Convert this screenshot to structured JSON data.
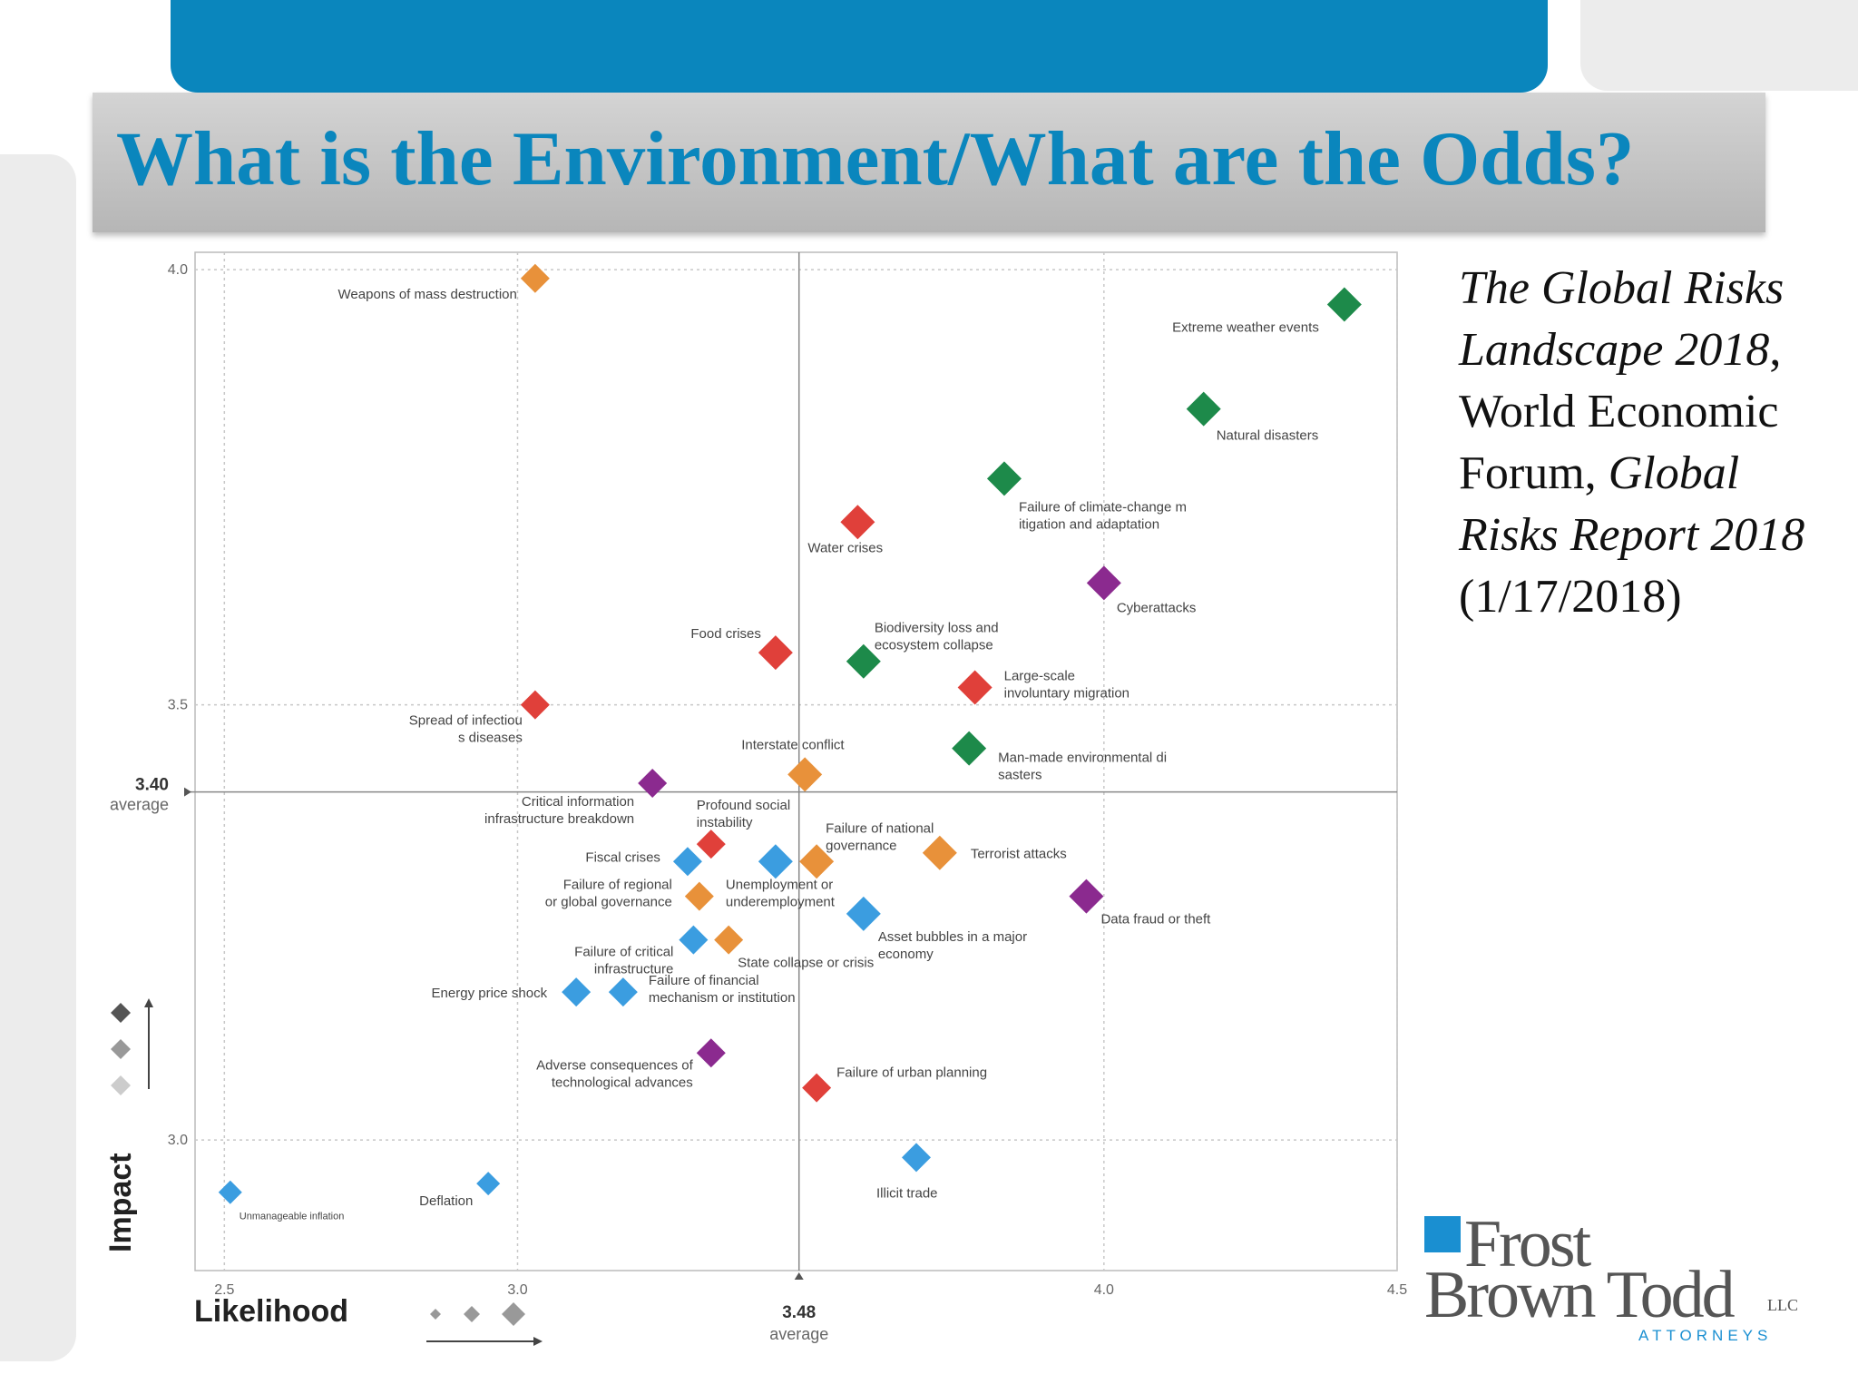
{
  "slide": {
    "title": "What is the Environment/What are the Odds?"
  },
  "citation": {
    "part1": "The Global Risks Landscape 2018",
    "part2": ", World Economic Forum, ",
    "part3": "Global Risks Report 2018",
    "part4": " (1/17/2018)"
  },
  "logo": {
    "line1": "Frost",
    "line2": "Brown Todd",
    "suffix": "LLC",
    "tagline": "ATTORNEYS"
  },
  "colors": {
    "economic": "#3b9de0",
    "environmental": "#1d8a4a",
    "geopolitical": "#e8913a",
    "societal": "#e0403a",
    "technological": "#8b2a8f",
    "accent": "#0a86bd"
  },
  "chart_data": {
    "type": "scatter",
    "xlabel": "Likelihood",
    "ylabel": "Impact",
    "xlim": [
      2.45,
      4.5
    ],
    "ylim": [
      2.85,
      4.02
    ],
    "x_ticks": [
      "2.5",
      "3.0",
      "4.0",
      "4.5"
    ],
    "y_ticks": [
      "3.0",
      "3.5",
      "4.0"
    ],
    "avg_x": {
      "value": 3.48,
      "label": "3.48",
      "sublabel": "average"
    },
    "avg_y": {
      "value": 3.4,
      "label": "3.40",
      "sublabel": "average"
    },
    "points": [
      {
        "label": "Weapons of mass destruction",
        "x": 3.03,
        "y": 3.99,
        "category": "geopolitical",
        "size": 2
      },
      {
        "label": "Extreme weather events",
        "x": 4.41,
        "y": 3.96,
        "category": "environmental",
        "size": 3
      },
      {
        "label": "Natural disasters",
        "x": 4.17,
        "y": 3.84,
        "category": "environmental",
        "size": 3
      },
      {
        "label": "Failure of climate-change mitigation and adaptation",
        "x": 3.83,
        "y": 3.76,
        "category": "environmental",
        "size": 3
      },
      {
        "label": "Water crises",
        "x": 3.58,
        "y": 3.71,
        "category": "societal",
        "size": 3
      },
      {
        "label": "Cyberattacks",
        "x": 4.0,
        "y": 3.64,
        "category": "technological",
        "size": 3
      },
      {
        "label": "Biodiversity loss and ecosystem collapse",
        "x": 3.59,
        "y": 3.55,
        "category": "environmental",
        "size": 3
      },
      {
        "label": "Food crises",
        "x": 3.44,
        "y": 3.56,
        "category": "societal",
        "size": 3
      },
      {
        "label": "Large-scale involuntary migration",
        "x": 3.78,
        "y": 3.52,
        "category": "societal",
        "size": 3
      },
      {
        "label": "Spread of infectious diseases",
        "x": 3.03,
        "y": 3.5,
        "category": "societal",
        "size": 2
      },
      {
        "label": "Interstate conflict",
        "x": 3.49,
        "y": 3.42,
        "category": "geopolitical",
        "size": 3
      },
      {
        "label": "Man-made environmental disasters",
        "x": 3.77,
        "y": 3.45,
        "category": "environmental",
        "size": 3
      },
      {
        "label": "Critical information infrastructure breakdown",
        "x": 3.23,
        "y": 3.41,
        "category": "technological",
        "size": 2
      },
      {
        "label": "Profound social instability",
        "x": 3.33,
        "y": 3.34,
        "category": "societal",
        "size": 2
      },
      {
        "label": "Fiscal crises",
        "x": 3.29,
        "y": 3.32,
        "category": "economic",
        "size": 2
      },
      {
        "label": "Unemployment or underemployment",
        "x": 3.44,
        "y": 3.32,
        "category": "economic",
        "size": 3
      },
      {
        "label": "Failure of national governance",
        "x": 3.51,
        "y": 3.32,
        "category": "geopolitical",
        "size": 3
      },
      {
        "label": "Terrorist attacks",
        "x": 3.72,
        "y": 3.33,
        "category": "geopolitical",
        "size": 3
      },
      {
        "label": "Failure of regional or global governance",
        "x": 3.31,
        "y": 3.28,
        "category": "geopolitical",
        "size": 2
      },
      {
        "label": "Data fraud or theft",
        "x": 3.97,
        "y": 3.28,
        "category": "technological",
        "size": 3
      },
      {
        "label": "Asset bubbles in a major economy",
        "x": 3.59,
        "y": 3.26,
        "category": "economic",
        "size": 3
      },
      {
        "label": "Failure of critical infrastructure",
        "x": 3.3,
        "y": 3.23,
        "category": "economic",
        "size": 2
      },
      {
        "label": "State collapse or crisis",
        "x": 3.36,
        "y": 3.23,
        "category": "geopolitical",
        "size": 2
      },
      {
        "label": "Energy price shock",
        "x": 3.1,
        "y": 3.17,
        "category": "economic",
        "size": 2
      },
      {
        "label": "Failure of financial mechanism or institution",
        "x": 3.18,
        "y": 3.17,
        "category": "economic",
        "size": 2
      },
      {
        "label": "Adverse consequences of technological advances",
        "x": 3.33,
        "y": 3.1,
        "category": "technological",
        "size": 2
      },
      {
        "label": "Failure of urban planning",
        "x": 3.51,
        "y": 3.06,
        "category": "societal",
        "size": 2
      },
      {
        "label": "Illicit trade",
        "x": 3.68,
        "y": 2.98,
        "category": "economic",
        "size": 2
      },
      {
        "label": "Unmanageable inflation",
        "x": 2.51,
        "y": 2.94,
        "category": "economic",
        "size": 1
      },
      {
        "label": "Deflation",
        "x": 2.95,
        "y": 2.95,
        "category": "economic",
        "size": 1
      }
    ]
  }
}
